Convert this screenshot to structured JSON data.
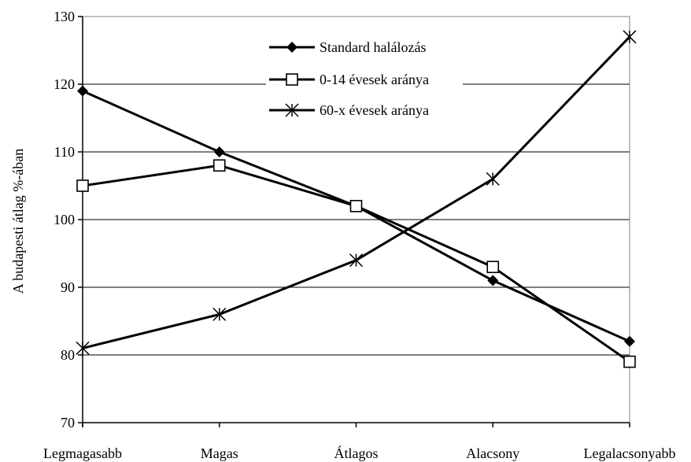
{
  "chart_data": {
    "type": "line",
    "title": "",
    "xlabel": "",
    "ylabel": "A budapesti átlag %-ában",
    "categories": [
      "Legmagasabb",
      "Magas",
      "Átlagos",
      "Alacsony",
      "Legalacsonyabb"
    ],
    "ylim": [
      70,
      130
    ],
    "yticks": [
      70,
      80,
      90,
      100,
      110,
      120,
      130
    ],
    "grid": "horizontal",
    "legend_position": "top-center",
    "series": [
      {
        "name": "Standard halálozás",
        "marker": "diamond",
        "values": [
          119,
          110,
          102,
          91,
          82
        ]
      },
      {
        "name": "0-14 évesek aránya",
        "marker": "square",
        "values": [
          105,
          108,
          102,
          93,
          79
        ]
      },
      {
        "name": "60-x évesek aránya",
        "marker": "star",
        "values": [
          81,
          86,
          94,
          106,
          127
        ]
      }
    ],
    "colors": {
      "line": "#000000",
      "grid": "#000000",
      "background": "#ffffff"
    }
  }
}
